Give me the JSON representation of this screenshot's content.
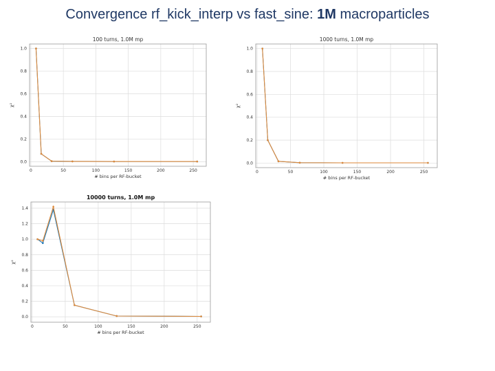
{
  "slide": {
    "title_prefix": "Convergence rf_kick_interp vs fast_sine: ",
    "title_bold": "1M",
    "title_suffix": " macroparticles"
  },
  "chart_data": [
    {
      "type": "line",
      "title": "100 turns, 1.0M mp",
      "xlabel": "# bins per RF-bucket",
      "ylabel": "χ²",
      "xlim": [
        -2,
        270
      ],
      "ylim": [
        -0.04,
        1.04
      ],
      "xticks": [
        0,
        50,
        100,
        150,
        200,
        250
      ],
      "yticks": [
        0.0,
        0.2,
        0.4,
        0.6,
        0.8,
        1.0
      ],
      "grid": true,
      "series": [
        {
          "x": [
            8,
            16,
            32,
            64,
            128,
            256
          ],
          "y": [
            1.0,
            0.07,
            0.005,
            0.003,
            0.002,
            0.002
          ],
          "color": "#1f77b4"
        },
        {
          "x": [
            8,
            16,
            32,
            64,
            128,
            256
          ],
          "y": [
            1.0,
            0.07,
            0.005,
            0.003,
            0.002,
            0.002
          ],
          "color": "#e08a3a"
        }
      ]
    },
    {
      "type": "line",
      "title": "1000 turns, 1.0M mp",
      "xlabel": "# bins per RF-bucket",
      "ylabel": "χ²",
      "xlim": [
        -2,
        270
      ],
      "ylim": [
        -0.04,
        1.04
      ],
      "xticks": [
        0,
        50,
        100,
        150,
        200,
        250
      ],
      "yticks": [
        0.0,
        0.2,
        0.4,
        0.6,
        0.8,
        1.0
      ],
      "grid": true,
      "series": [
        {
          "x": [
            8,
            16,
            32,
            64,
            128,
            256
          ],
          "y": [
            1.0,
            0.2,
            0.015,
            0.003,
            0.002,
            0.002
          ],
          "color": "#1f77b4"
        },
        {
          "x": [
            8,
            16,
            32,
            64,
            128,
            256
          ],
          "y": [
            1.0,
            0.2,
            0.015,
            0.003,
            0.002,
            0.002
          ],
          "color": "#e08a3a"
        }
      ]
    },
    {
      "type": "line",
      "title": "10000 turns, 1.0M mp",
      "xlabel": "# bins per RF-bucket",
      "ylabel": "χ²",
      "xlim": [
        -2,
        270
      ],
      "ylim": [
        -0.07,
        1.48
      ],
      "xticks": [
        0,
        50,
        100,
        150,
        200,
        250
      ],
      "yticks": [
        0.0,
        0.2,
        0.4,
        0.6,
        0.8,
        1.0,
        1.2,
        1.4
      ],
      "grid": true,
      "series": [
        {
          "x": [
            8,
            16,
            32,
            64,
            128,
            256
          ],
          "y": [
            1.0,
            0.95,
            1.38,
            0.15,
            0.01,
            0.005
          ],
          "color": "#1f77b4"
        },
        {
          "x": [
            8,
            16,
            32,
            64,
            128,
            256
          ],
          "y": [
            1.0,
            0.98,
            1.42,
            0.15,
            0.01,
            0.005
          ],
          "color": "#e08a3a"
        }
      ]
    }
  ]
}
